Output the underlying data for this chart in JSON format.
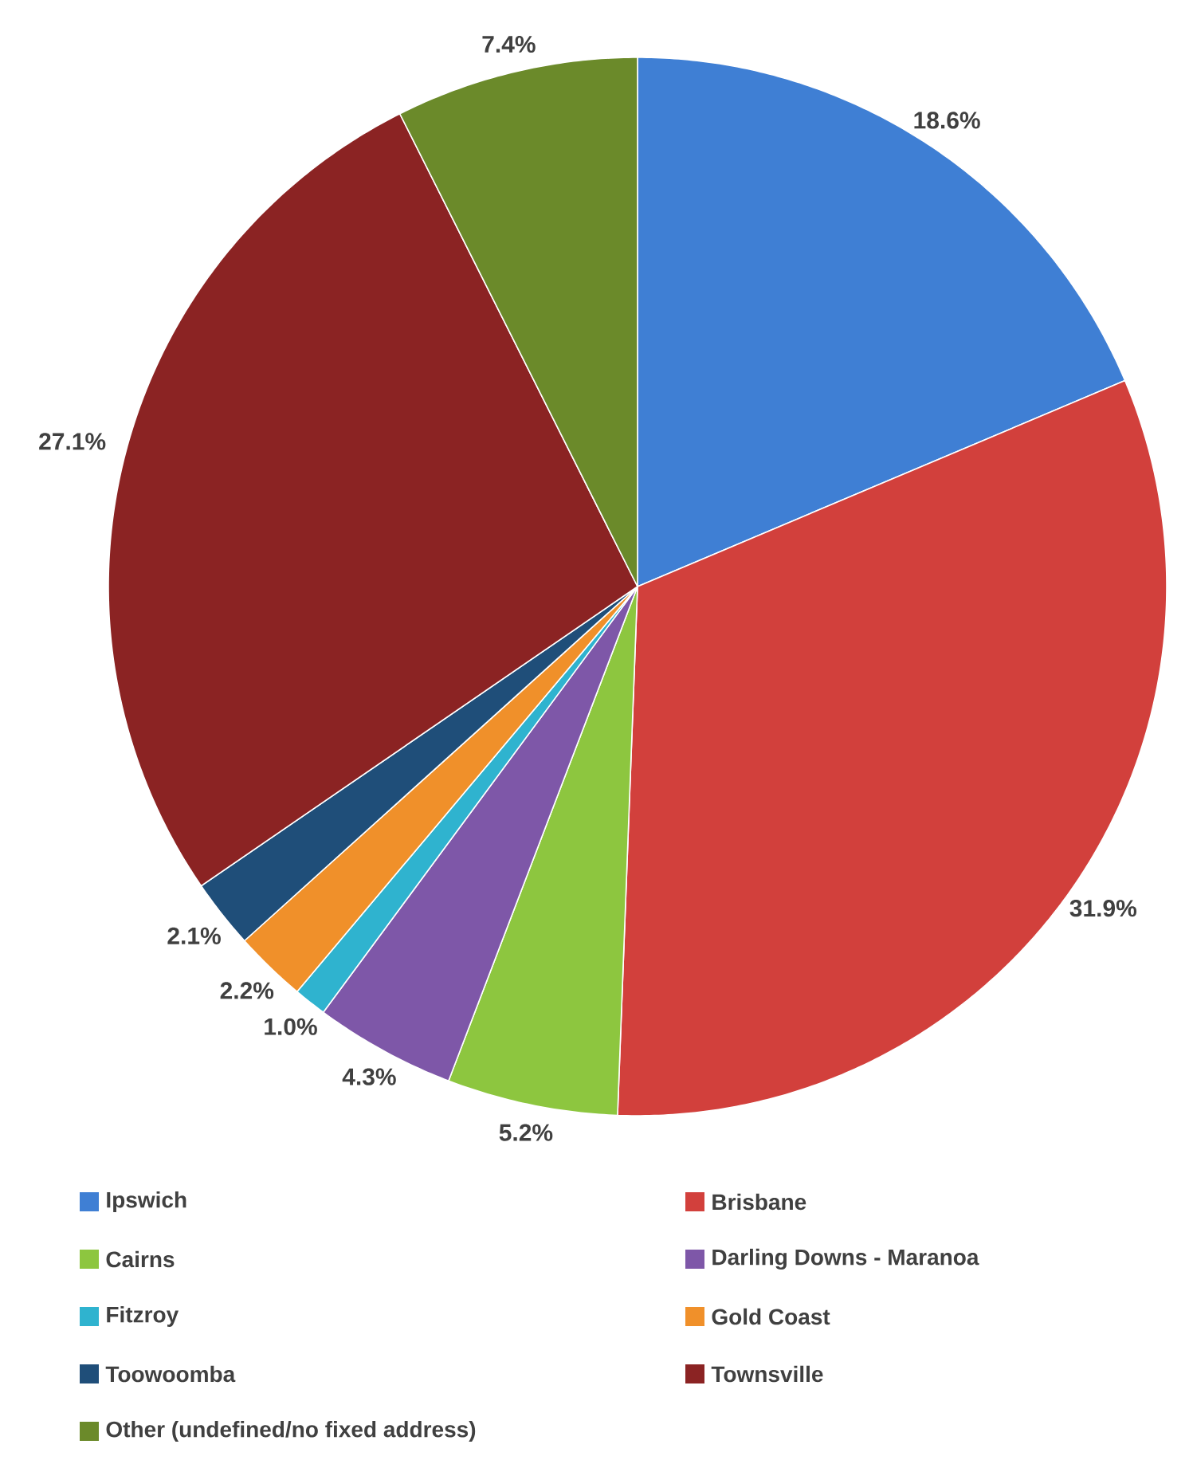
{
  "chart_data": {
    "type": "pie",
    "categories": [
      "Ipswich",
      "Brisbane",
      "Cairns",
      "Darling Downs - Maranoa",
      "Fitzroy",
      "Gold Coast",
      "Toowoomba",
      "Townsville",
      "Other (undefined/no fixed address)"
    ],
    "values": [
      18.6,
      31.9,
      5.2,
      4.3,
      1.0,
      2.2,
      2.1,
      27.1,
      7.4
    ],
    "colors": [
      "#3f7fd4",
      "#d2403c",
      "#8dc63f",
      "#7e57a8",
      "#2fb3cf",
      "#f0902a",
      "#1f4e79",
      "#8b2323",
      "#6b8a2a"
    ],
    "value_labels": [
      "18.6%",
      "31.9%",
      "5.2%",
      "4.3%",
      "1.0%",
      "2.2%",
      "2.1%",
      "27.1%",
      "7.4%"
    ],
    "legend": "bottom"
  }
}
